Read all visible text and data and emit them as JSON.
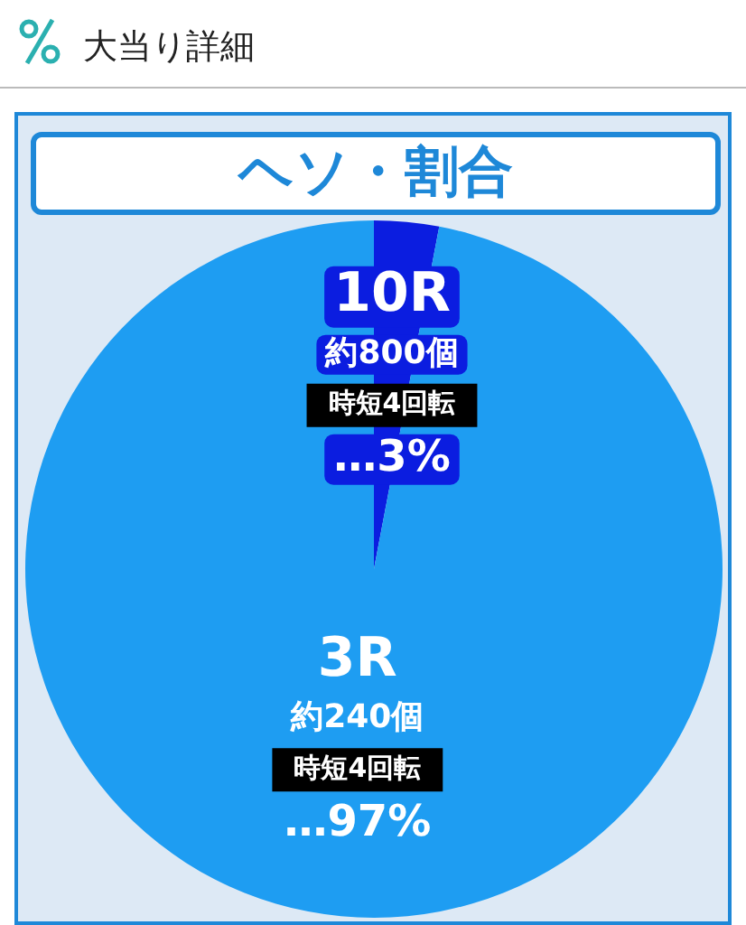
{
  "chart_data": {
    "type": "pie",
    "title": "大当り詳細",
    "subtitle": "ヘソ・割合",
    "categories": [
      "10R",
      "3R"
    ],
    "values": [
      3,
      97
    ],
    "colors": [
      "#0b1de0",
      "#1e9df2"
    ],
    "value_labels": [
      "…3%",
      "…97%"
    ],
    "annotations": [
      {
        "text": "約800個",
        "x": "10R"
      },
      {
        "text": "時短4回転",
        "x": "10R"
      },
      {
        "text": "約240個",
        "x": "3R"
      },
      {
        "text": "時短4回転",
        "x": "3R"
      }
    ],
    "legend": false
  }
}
